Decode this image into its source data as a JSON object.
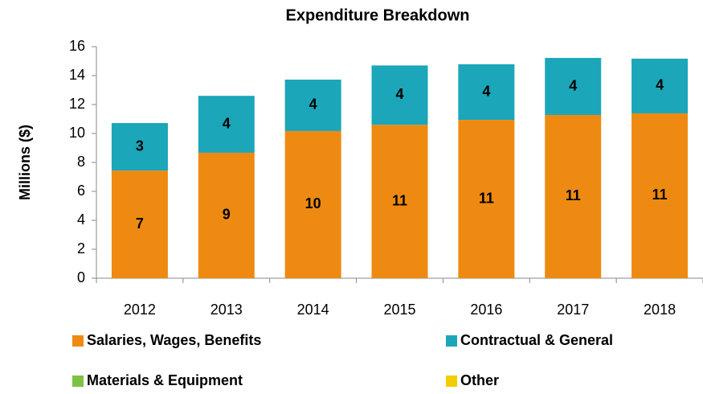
{
  "chart_data": {
    "type": "bar",
    "stacked": true,
    "title": "Expenditure Breakdown",
    "y_label": "Millions ($)",
    "categories": [
      "2012",
      "2013",
      "2014",
      "2015",
      "2016",
      "2017",
      "2018"
    ],
    "series": [
      {
        "name": "Salaries, Wages, Benefits",
        "color": "#ee8a12",
        "values": [
          7.44,
          8.67,
          10.17,
          10.6,
          10.94,
          11.28,
          11.39
        ],
        "value_labels": [
          "7",
          "9",
          "10",
          "11",
          "11",
          "11",
          "11"
        ]
      },
      {
        "name": "Contractual & General",
        "color": "#1ba6ba",
        "values": [
          3.28,
          3.93,
          3.55,
          4.1,
          3.84,
          3.94,
          3.78
        ],
        "value_labels": [
          "3",
          "4",
          "4",
          "4",
          "4",
          "4",
          "4"
        ]
      },
      {
        "name": "Materials & Equipment",
        "color": "#7dc242",
        "values": [
          0,
          0,
          0,
          0,
          0,
          0,
          0
        ]
      },
      {
        "name": "Other",
        "color": "#f2cd00",
        "values": [
          0,
          0,
          0,
          0,
          0,
          0,
          0
        ]
      }
    ],
    "ylim": [
      0,
      16
    ],
    "yticks": [
      0,
      2,
      4,
      6,
      8,
      10,
      12,
      14,
      16
    ],
    "grid": false
  }
}
